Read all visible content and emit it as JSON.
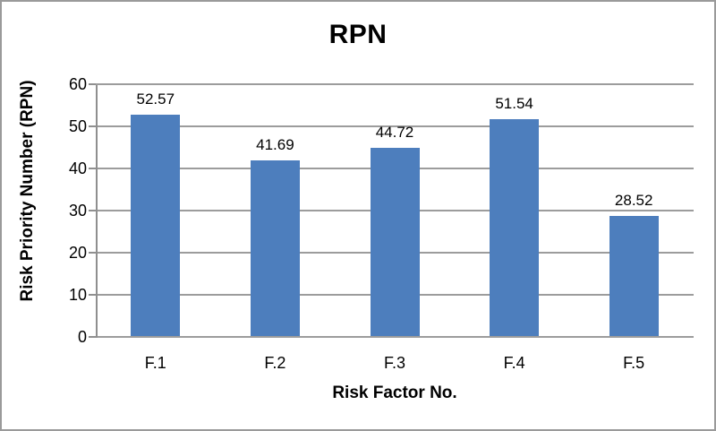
{
  "window": {
    "background": "#ffffff",
    "frame_border_color": "#9a9a9a"
  },
  "chart_data": {
    "type": "bar",
    "title": "RPN",
    "categories": [
      "F.1",
      "F.2",
      "F.3",
      "F.4",
      "F.5"
    ],
    "values": [
      52.57,
      41.69,
      44.72,
      51.54,
      28.52
    ],
    "data_labels": [
      "52.57",
      "41.69",
      "44.72",
      "51.54",
      "28.52"
    ],
    "xlabel": "Risk Factor No.",
    "ylabel": "Risk Priority Number (RPN)",
    "ylim": [
      0,
      60
    ],
    "ytick_interval": 10,
    "ytick_labels": [
      "0",
      "10",
      "20",
      "30",
      "40",
      "50",
      "60"
    ],
    "grid": "horizontal-on",
    "legend": "none",
    "colors": {
      "bar_fill": "#4d7ebd",
      "gridline": "#9c9c9c",
      "axis_line": "#8f8f8f",
      "text": "#000000"
    }
  }
}
